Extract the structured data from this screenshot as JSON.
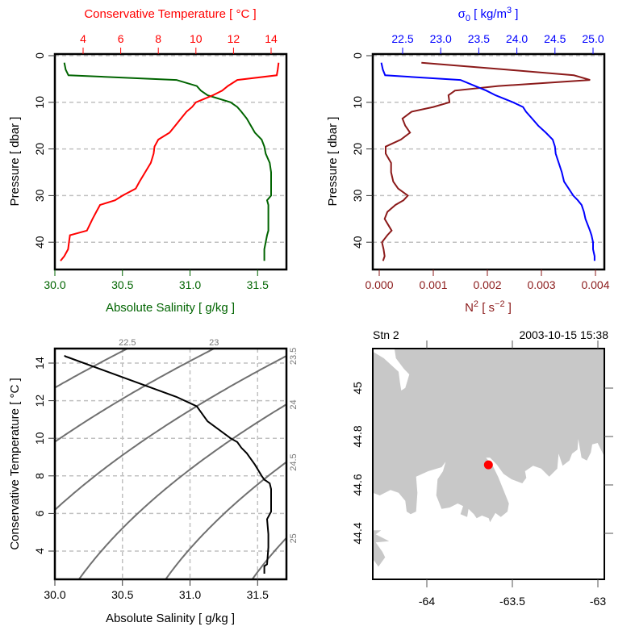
{
  "colors": {
    "salinity": "#006400",
    "temperature": "#ff0000",
    "sigma": "#0000ff",
    "n2": "#8b1a1a",
    "ts": "#000000",
    "isopycnal": "#707070",
    "grid": "#c0c0c0",
    "land": "#c8c8c8",
    "station": "#ff0000"
  },
  "profile": {
    "pressure": [
      1.5,
      3,
      4.2,
      5.2,
      6.5,
      7.5,
      8.5,
      10,
      11,
      12,
      13.5,
      15,
      16.5,
      18,
      19.5,
      21,
      23,
      25,
      27,
      28.5,
      30,
      31,
      32,
      33.5,
      35,
      37.5,
      38.5,
      40,
      41.5,
      43,
      44
    ],
    "SA": [
      30.07,
      30.08,
      30.1,
      30.9,
      31.05,
      31.08,
      31.13,
      31.3,
      31.35,
      31.38,
      31.42,
      31.45,
      31.48,
      31.53,
      31.55,
      31.56,
      31.59,
      31.6,
      31.6,
      31.6,
      31.6,
      31.57,
      31.58,
      31.58,
      31.58,
      31.58,
      31.57,
      31.56,
      31.55,
      31.55,
      31.55
    ],
    "CT": [
      14.4,
      14.35,
      14.3,
      12.2,
      11.7,
      11.4,
      10.9,
      10.0,
      9.8,
      9.5,
      9.2,
      8.9,
      8.6,
      8.0,
      7.8,
      7.75,
      7.6,
      7.3,
      7.0,
      6.8,
      6.1,
      5.7,
      4.9,
      4.7,
      4.5,
      4.2,
      3.3,
      3.25,
      3.2,
      3.0,
      2.8
    ],
    "sigma0": [
      22.22,
      22.24,
      22.27,
      23.26,
      23.45,
      23.6,
      23.72,
      23.95,
      24.08,
      24.12,
      24.2,
      24.28,
      24.38,
      24.47,
      24.5,
      24.51,
      24.55,
      24.59,
      24.62,
      24.68,
      24.74,
      24.8,
      24.85,
      24.88,
      24.9,
      24.96,
      24.98,
      25.0,
      25.0,
      25.02,
      25.02
    ],
    "N2": [
      0.00078,
      0.00235,
      0.0036,
      0.0039,
      0.0022,
      0.0014,
      0.00128,
      0.0013,
      0.001,
      0.0006,
      0.00043,
      0.00048,
      0.00057,
      0.0004,
      0.00012,
      0.00012,
      0.00022,
      0.00022,
      0.00026,
      0.00035,
      0.00053,
      0.00045,
      0.0003,
      0.00015,
      0.0001,
      0.00023,
      0.00015,
      5e-05,
      8e-05,
      0.0001,
      7e-05
    ]
  },
  "chart_data": [
    {
      "type": "line",
      "panel": "salinity-temperature-profile",
      "xlabel_bottom": "Absolute Salinity [ g/kg ]",
      "xlabel_top": "Conservative Temperature [ °C ]",
      "ylabel": "Pressure [ dbar ]",
      "xlim_bottom": [
        30.0,
        31.71
      ],
      "xlim_top": [
        2.5,
        14.8
      ],
      "ylim": [
        45.8,
        -0.3
      ],
      "y_reversed": true,
      "grid": "horizontal dashed",
      "xticks_bottom": [
        "30.0",
        "30.5",
        "31.0",
        "31.5"
      ],
      "xticks_top": [
        "4",
        "6",
        "8",
        "10",
        "12",
        "14"
      ],
      "yticks": [
        "0",
        "10",
        "20",
        "30",
        "40"
      ],
      "series": [
        {
          "variable": "SA",
          "axis": "bottom"
        },
        {
          "variable": "CT",
          "axis": "top"
        }
      ]
    },
    {
      "type": "line",
      "panel": "density-stability-profile",
      "xlabel_bottom": {
        "base": "N",
        "sup": "2",
        "rest": " [ s",
        "sup2": "−2",
        "end": " ]"
      },
      "xlabel_top": {
        "base": "σ",
        "sub": "0",
        "rest": " [ kg/m",
        "sup": "3",
        "end": " ]"
      },
      "ylabel": "Pressure [ dbar ]",
      "xlim_bottom": [
        -0.0001,
        0.00418
      ],
      "xlim_top": [
        22.15,
        25.15
      ],
      "ylim": [
        45.8,
        -0.3
      ],
      "y_reversed": true,
      "grid": "horizontal dashed",
      "xticks_bottom": [
        "0.000",
        "0.001",
        "0.002",
        "0.003",
        "0.004"
      ],
      "xticks_top": [
        "22.5",
        "23.0",
        "23.5",
        "24.0",
        "24.5",
        "25.0"
      ],
      "yticks": [
        "0",
        "10",
        "20",
        "30",
        "40"
      ],
      "series": [
        {
          "variable": "N2",
          "axis": "bottom"
        },
        {
          "variable": "sigma0",
          "axis": "top"
        }
      ]
    },
    {
      "type": "line",
      "panel": "TS-diagram",
      "xlabel": "Absolute Salinity [ g/kg ]",
      "ylabel": "Conservative Temperature [ °C ]",
      "xlim": [
        30.0,
        31.71
      ],
      "ylim": [
        2.5,
        14.77
      ],
      "grid": "dashed",
      "xticks": [
        "30.0",
        "30.5",
        "31.0",
        "31.5"
      ],
      "yticks": [
        "4",
        "6",
        "8",
        "10",
        "12",
        "14"
      ],
      "isopycnals": [
        "22.5",
        "23",
        "23.5",
        "24",
        "24.5",
        "25"
      ],
      "series": [
        {
          "x": "SA",
          "y": "CT"
        }
      ]
    },
    {
      "type": "scatter",
      "panel": "station-map",
      "title_left": "Stn 2",
      "title_right": "2003-10-15 15:38",
      "xlim": [
        -64.31,
        -62.97
      ],
      "ylim": [
        44.21,
        45.163
      ],
      "xticks": [
        "-64",
        "-63.5",
        "-63"
      ],
      "yticks": [
        "45",
        "44.8",
        "44.6",
        "44.4"
      ],
      "station": {
        "lon": -63.64,
        "lat": 44.683
      }
    }
  ]
}
